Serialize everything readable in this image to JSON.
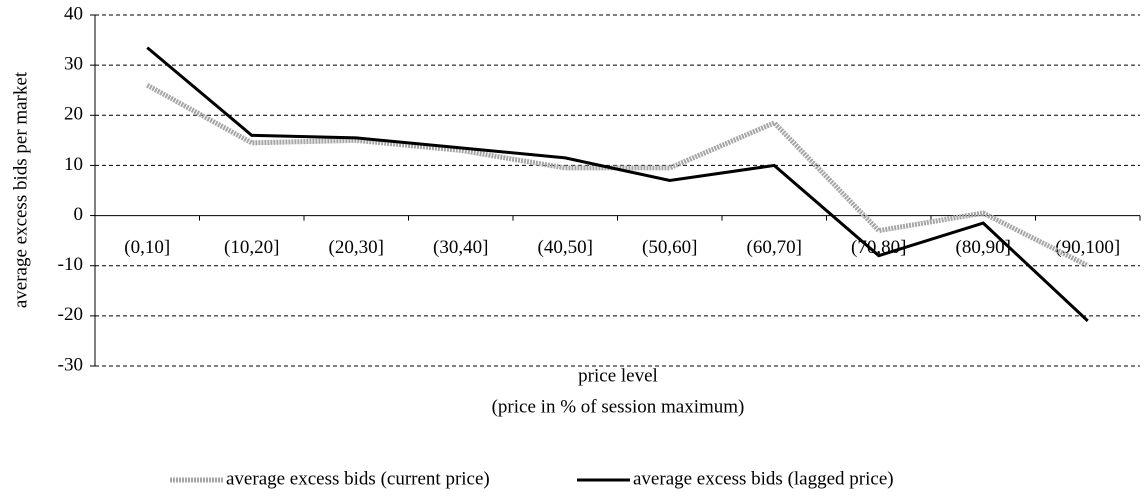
{
  "chart_data": {
    "type": "line",
    "y_label": "average excess bids per market",
    "x_label": [
      "price level",
      "(price in % of session maximum)"
    ],
    "categories": [
      "(0,10]",
      "(10,20]",
      "(20,30]",
      "(30,40]",
      "(40,50]",
      "(50,60]",
      "(60,70]",
      "(70,80]",
      "(80,90]",
      "(90,100]"
    ],
    "series": [
      {
        "name": "average excess bids (current price)",
        "color": "#a6a6a6",
        "values": [
          26,
          14.5,
          15,
          13,
          9.5,
          9.5,
          18.5,
          -3,
          0.5,
          -10
        ]
      },
      {
        "name": "average excess bids (lagged price)",
        "color": "#000000",
        "values": [
          33.5,
          16,
          15.5,
          13.5,
          11.5,
          7,
          10,
          -8,
          -1.5,
          -21
        ]
      }
    ],
    "ylim": [
      -30,
      40
    ],
    "yticks": [
      -30,
      -20,
      -10,
      0,
      10,
      20,
      30,
      40
    ],
    "grid": true,
    "legend": "bottom"
  }
}
